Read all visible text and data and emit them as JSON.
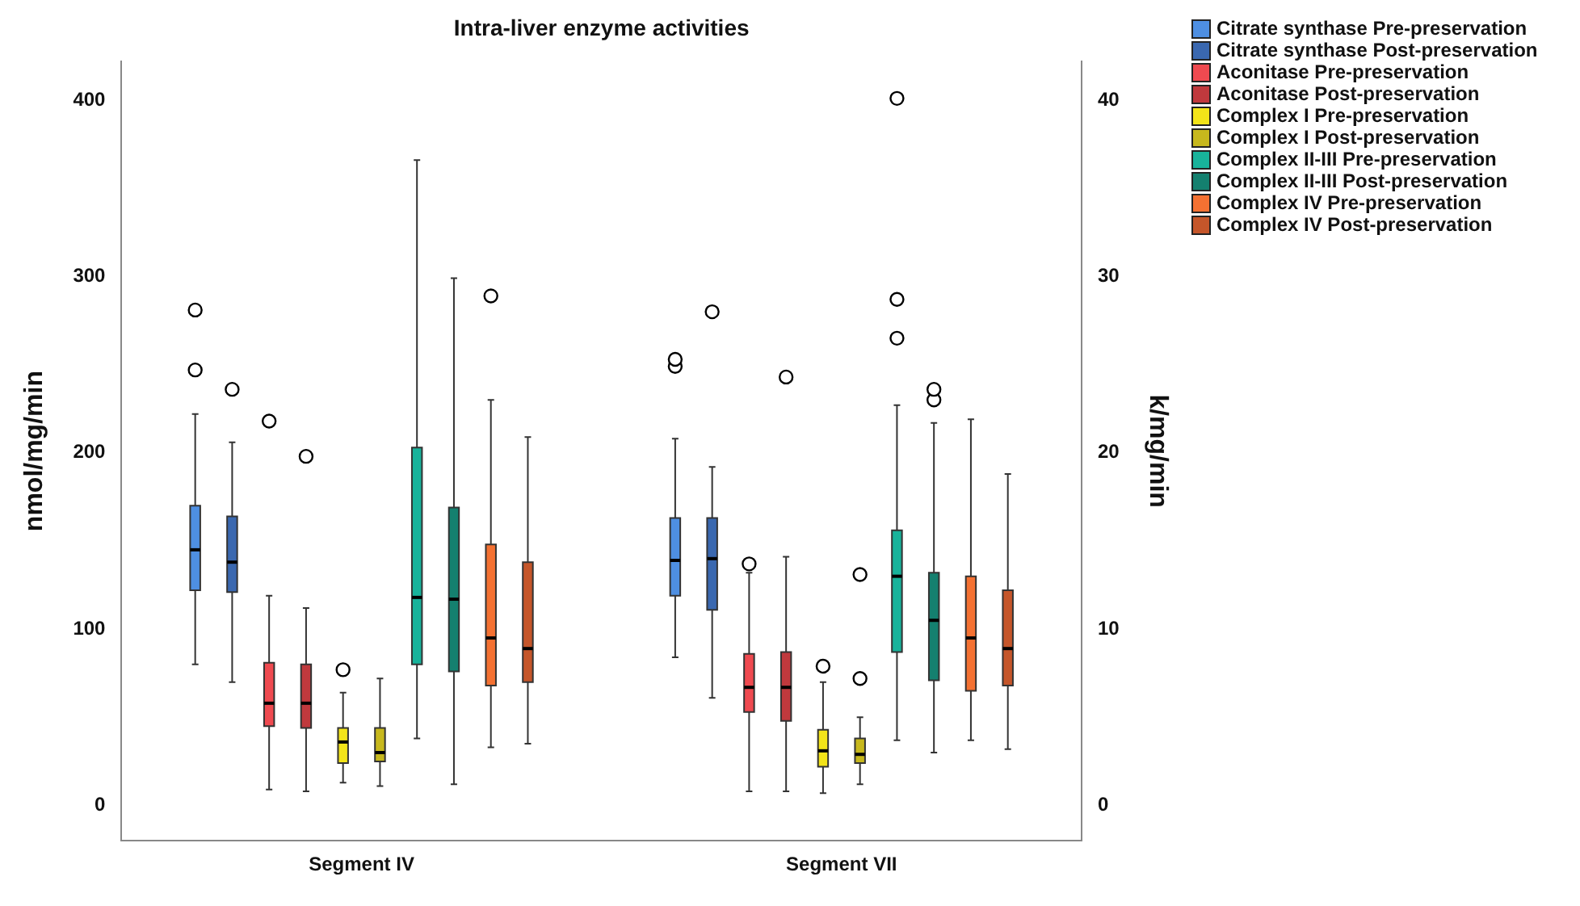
{
  "chart_data": {
    "type": "box",
    "title": "Intra-liver enzyme activities",
    "ylabel": "nmol/mg/min",
    "y2label": "k/mg/min",
    "categories": [
      "Segment IV",
      "Segment VII"
    ],
    "ylim": [
      -20,
      422
    ],
    "yticks": [
      0,
      100,
      200,
      300,
      400
    ],
    "y2lim": [
      -2,
      42.2
    ],
    "y2ticks": [
      0,
      10,
      20,
      30,
      40
    ],
    "legend": "top right",
    "series": [
      {
        "name": "Citrate synthase Pre-preservation",
        "color": "#4e8fe2",
        "boxes": [
          {
            "low": 80,
            "q1": 122,
            "median": 145,
            "q3": 170,
            "high": 222,
            "outliers": [
              247,
              281
            ]
          },
          {
            "low": 84,
            "q1": 119,
            "median": 139,
            "q3": 163,
            "high": 208,
            "outliers": [
              249,
              253
            ]
          }
        ]
      },
      {
        "name": "Citrate synthase Post-preservation",
        "color": "#3a68b0",
        "boxes": [
          {
            "low": 70,
            "q1": 121,
            "median": 138,
            "q3": 164,
            "high": 206,
            "outliers": [
              236
            ]
          },
          {
            "low": 61,
            "q1": 111,
            "median": 140,
            "q3": 163,
            "high": 192,
            "outliers": [
              280
            ]
          }
        ]
      },
      {
        "name": "Aconitase Pre-preservation",
        "color": "#ef4a50",
        "boxes": [
          {
            "low": 9,
            "q1": 45,
            "median": 58,
            "q3": 81,
            "high": 119,
            "outliers": [
              218
            ]
          },
          {
            "low": 8,
            "q1": 53,
            "median": 67,
            "q3": 86,
            "high": 132,
            "outliers": [
              137
            ]
          }
        ]
      },
      {
        "name": "Aconitase Post-preservation",
        "color": "#c0393d",
        "boxes": [
          {
            "low": 8,
            "q1": 44,
            "median": 58,
            "q3": 80,
            "high": 112,
            "outliers": [
              198
            ]
          },
          {
            "low": 8,
            "q1": 48,
            "median": 67,
            "q3": 87,
            "high": 141,
            "outliers": [
              243
            ]
          }
        ]
      },
      {
        "name": "Complex I Pre-preservation",
        "color": "#f3e419",
        "boxes": [
          {
            "low": 13,
            "q1": 24,
            "median": 36,
            "q3": 44,
            "high": 64,
            "outliers": [
              77
            ]
          },
          {
            "low": 7,
            "q1": 22,
            "median": 31,
            "q3": 43,
            "high": 70,
            "outliers": [
              79
            ]
          }
        ]
      },
      {
        "name": "Complex I Post-preservation",
        "color": "#c7b81d",
        "boxes": [
          {
            "low": 11,
            "q1": 25,
            "median": 30,
            "q3": 44,
            "high": 72
          },
          {
            "low": 12,
            "q1": 24,
            "median": 29,
            "q3": 38,
            "high": 50,
            "outliers": [
              72,
              131
            ]
          }
        ]
      },
      {
        "name": "Complex II-III Pre-preservation",
        "color": "#18b39b",
        "boxes": [
          {
            "low": 38,
            "q1": 80,
            "median": 118,
            "q3": 203,
            "high": 366
          },
          {
            "low": 37,
            "q1": 87,
            "median": 130,
            "q3": 156,
            "high": 227,
            "outliers": [
              265,
              287,
              401
            ]
          }
        ]
      },
      {
        "name": "Complex II-III Post-preservation",
        "color": "#14806f",
        "boxes": [
          {
            "low": 12,
            "q1": 76,
            "median": 117,
            "q3": 169,
            "high": 299
          },
          {
            "low": 30,
            "q1": 71,
            "median": 105,
            "q3": 132,
            "high": 217,
            "outliers": [
              230,
              236
            ]
          }
        ]
      },
      {
        "name": "Complex IV Pre-preservation",
        "color": "#f47132",
        "boxes": [
          {
            "low": 33,
            "q1": 68,
            "median": 95,
            "q3": 148,
            "high": 230,
            "outliers": [
              289
            ]
          },
          {
            "low": 37,
            "q1": 65,
            "median": 95,
            "q3": 130,
            "high": 219
          }
        ]
      },
      {
        "name": "Complex IV Post-preservation",
        "color": "#c5562a",
        "boxes": [
          {
            "low": 35,
            "q1": 70,
            "median": 89,
            "q3": 138,
            "high": 209
          },
          {
            "low": 32,
            "q1": 68,
            "median": 89,
            "q3": 122,
            "high": 188
          }
        ]
      }
    ]
  }
}
